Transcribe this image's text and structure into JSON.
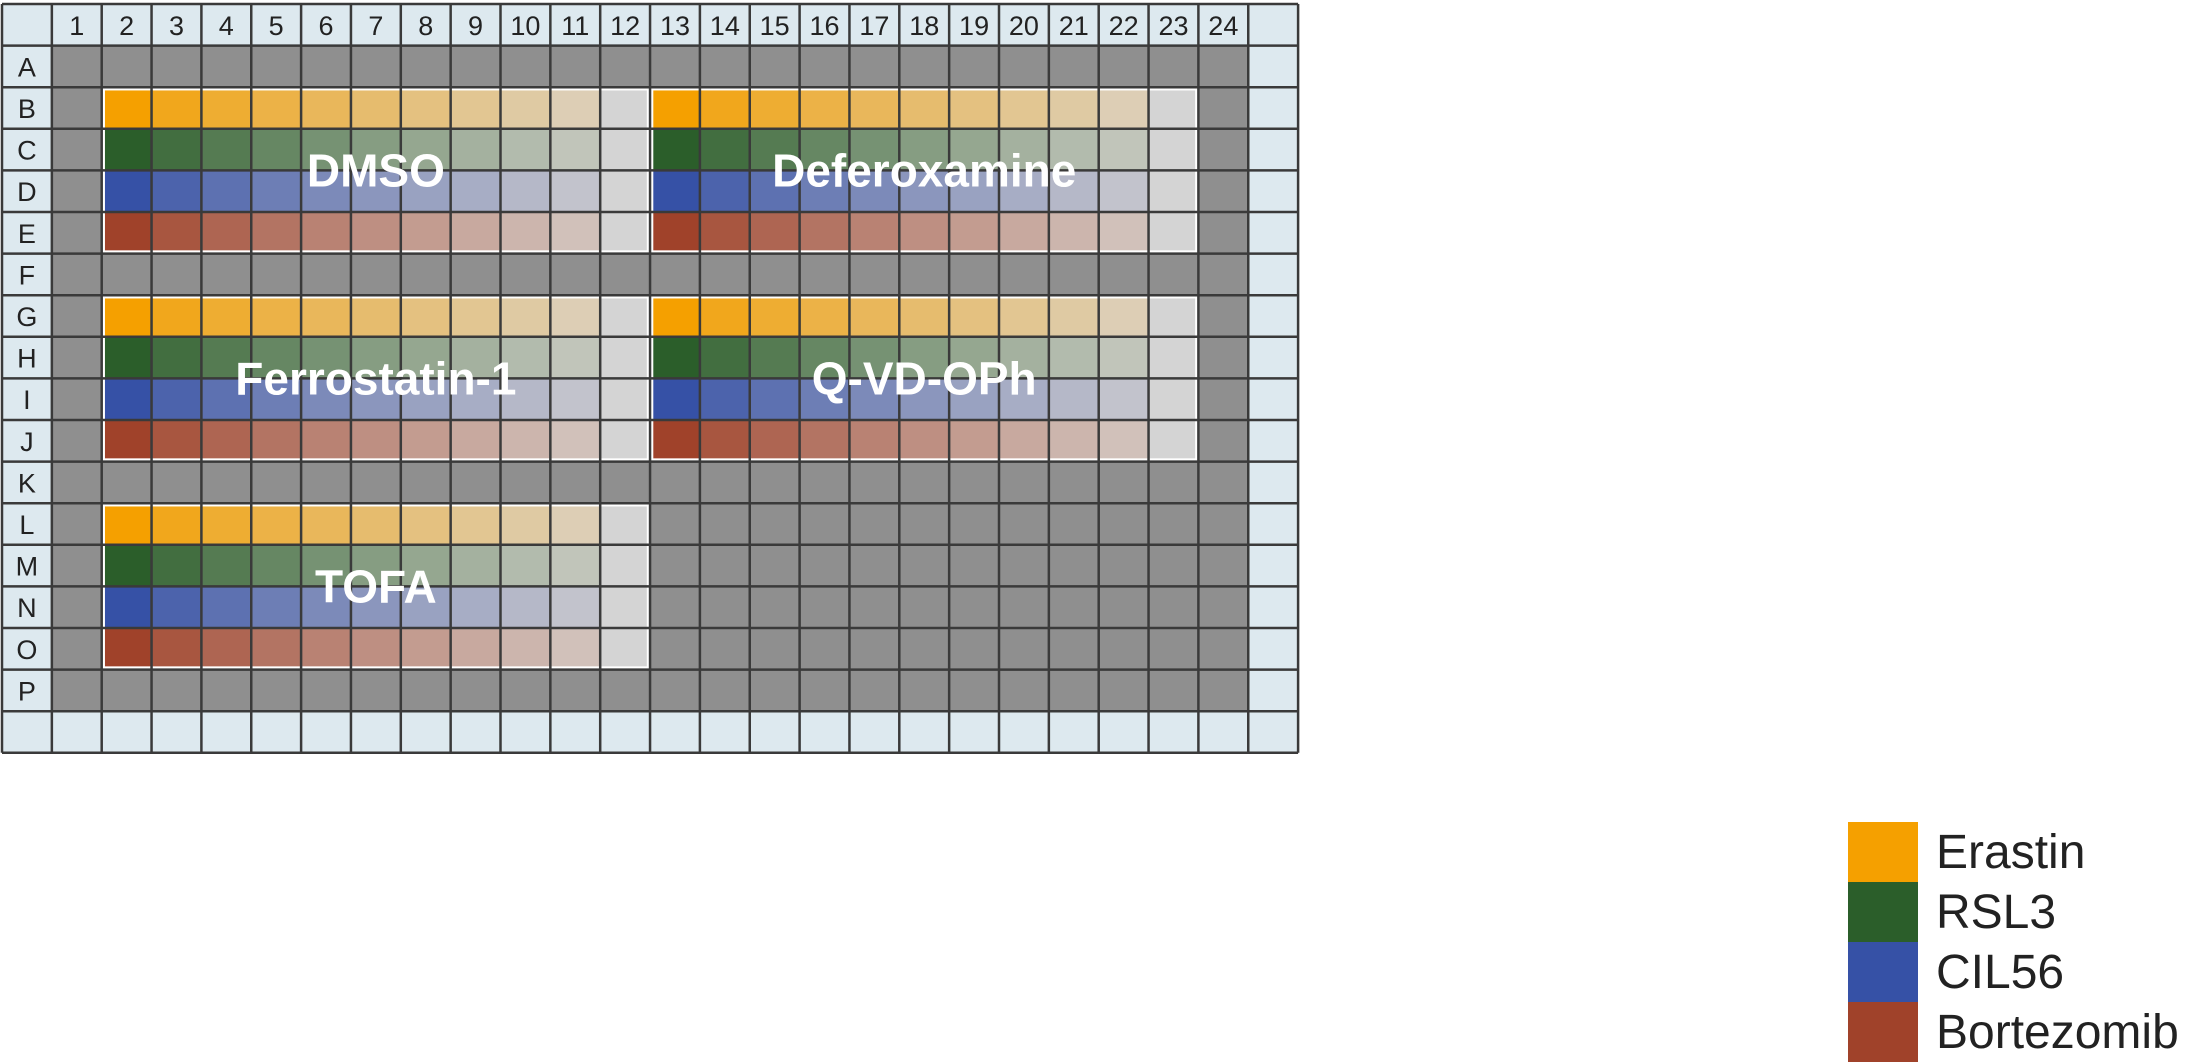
{
  "plate": {
    "columns": [
      "1",
      "2",
      "3",
      "4",
      "5",
      "6",
      "7",
      "8",
      "9",
      "10",
      "11",
      "12",
      "13",
      "14",
      "15",
      "16",
      "17",
      "18",
      "19",
      "20",
      "21",
      "22",
      "23",
      "24"
    ],
    "rows": [
      "A",
      "B",
      "C",
      "D",
      "E",
      "F",
      "G",
      "H",
      "I",
      "J",
      "K",
      "L",
      "M",
      "N",
      "O",
      "P"
    ],
    "colors": {
      "header_bg": "#dde9ef",
      "grid_line": "#3a3a3a",
      "well_empty": "#8f8f8f",
      "block_border": "#ffffff",
      "end_well": "#d4d4d4",
      "block_label": "#ffffff"
    },
    "blocks": [
      {
        "label": "DMSO",
        "rows": [
          "B",
          "C",
          "D",
          "E"
        ],
        "columns": [
          "2",
          "3",
          "4",
          "5",
          "6",
          "7",
          "8",
          "9",
          "10",
          "11",
          "12"
        ]
      },
      {
        "label": "Deferoxamine",
        "rows": [
          "B",
          "C",
          "D",
          "E"
        ],
        "columns": [
          "13",
          "14",
          "15",
          "16",
          "17",
          "18",
          "19",
          "20",
          "21",
          "22",
          "23"
        ]
      },
      {
        "label": "Ferrostatin-1",
        "rows": [
          "G",
          "H",
          "I",
          "J"
        ],
        "columns": [
          "2",
          "3",
          "4",
          "5",
          "6",
          "7",
          "8",
          "9",
          "10",
          "11",
          "12"
        ]
      },
      {
        "label": "Q-VD-OPh",
        "rows": [
          "G",
          "H",
          "I",
          "J"
        ],
        "columns": [
          "13",
          "14",
          "15",
          "16",
          "17",
          "18",
          "19",
          "20",
          "21",
          "22",
          "23"
        ]
      },
      {
        "label": "TOFA",
        "rows": [
          "L",
          "M",
          "N",
          "O"
        ],
        "columns": [
          "2",
          "3",
          "4",
          "5",
          "6",
          "7",
          "8",
          "9",
          "10",
          "11",
          "12"
        ]
      }
    ]
  },
  "legend": [
    {
      "label": "Erastin",
      "color": "#f5a000"
    },
    {
      "label": "RSL3",
      "color": "#2b5e2a"
    },
    {
      "label": "CIL56",
      "color": "#3651a6"
    },
    {
      "label": "Bortezomib",
      "color": "#a0422a"
    }
  ]
}
